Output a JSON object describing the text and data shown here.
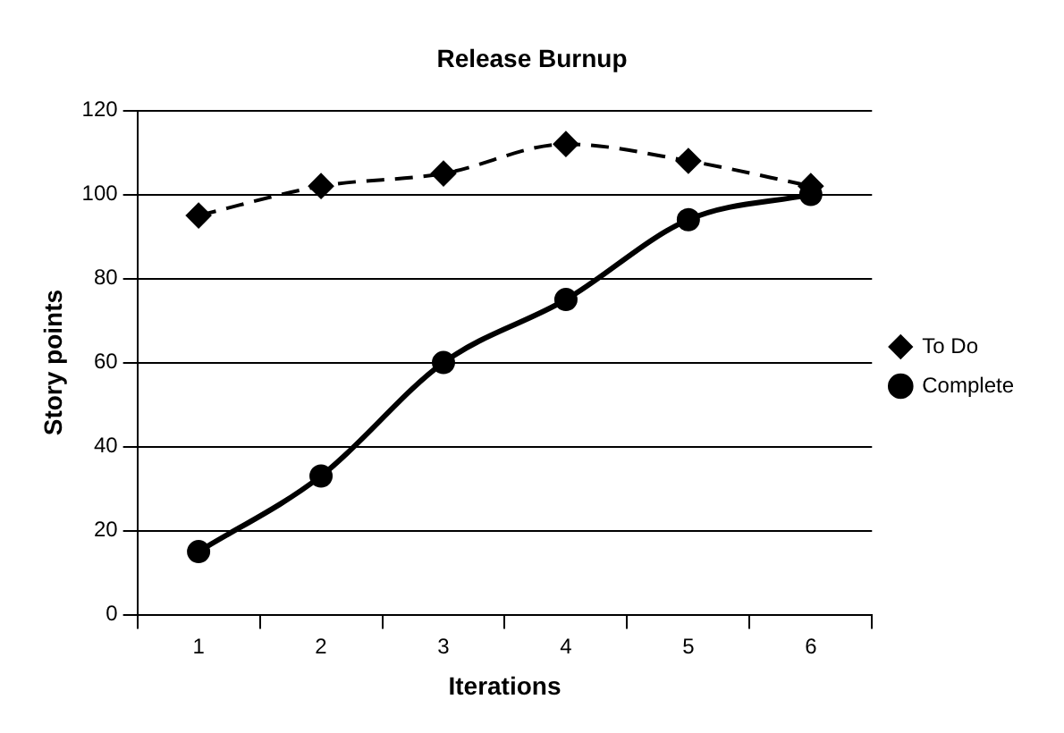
{
  "chart_data": {
    "type": "line",
    "title": "Release Burnup",
    "xlabel": "Iterations",
    "ylabel": "Story points",
    "categories": [
      "1",
      "2",
      "3",
      "4",
      "5",
      "6"
    ],
    "series": [
      {
        "name": "To Do",
        "color": "#000000",
        "values": [
          95,
          102,
          105,
          112,
          108,
          102
        ],
        "marker": "diamond",
        "line_style": "dashed"
      },
      {
        "name": "Complete",
        "color": "#000000",
        "values": [
          15,
          33,
          60,
          75,
          94,
          100
        ],
        "marker": "circle",
        "line_style": "solid"
      }
    ],
    "ylim": [
      0,
      120
    ],
    "yticks": [
      0,
      20,
      40,
      60,
      80,
      100,
      120
    ],
    "grid": "y",
    "legend": "right"
  }
}
